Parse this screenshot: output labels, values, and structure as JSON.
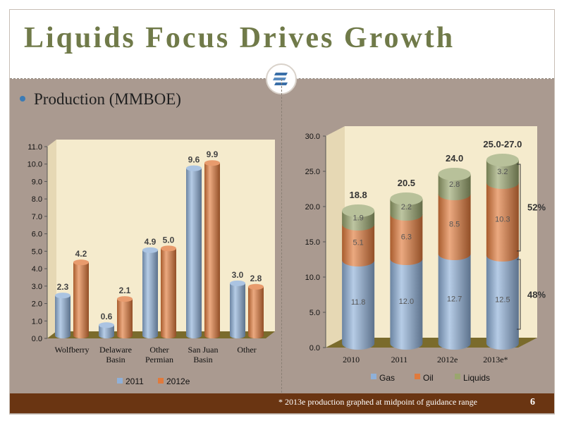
{
  "slide": {
    "title": "Liquids Focus Drives Growth",
    "bullet": "Production (MMBOE)",
    "footnote": "* 2013e production graphed at midpoint of guidance range",
    "page_number": "6"
  },
  "chart_data": [
    {
      "type": "bar",
      "categories": [
        "Wolfberry",
        "Delaware Basin",
        "Other Permian",
        "San Juan Basin",
        "Other"
      ],
      "category_lines": [
        [
          "Wolfberry"
        ],
        [
          "Delaware",
          "Basin"
        ],
        [
          "Other",
          "Permian"
        ],
        [
          "San Juan",
          "Basin"
        ],
        [
          "Other"
        ]
      ],
      "series": [
        {
          "name": "2011",
          "values": [
            2.3,
            0.6,
            4.9,
            9.6,
            3.0
          ],
          "labels": [
            "2.3",
            "0.6",
            "4.9",
            "9.6",
            "3.0"
          ],
          "color": "#8fb0d8"
        },
        {
          "name": "2012e",
          "values": [
            4.2,
            2.1,
            5.0,
            9.9,
            2.8
          ],
          "labels": [
            "4.2",
            "2.1",
            "5.0",
            "9.9",
            "2.8"
          ],
          "color": "#e07a3c"
        }
      ],
      "ylim": [
        0,
        11
      ],
      "y_ticks": [
        "0.0",
        "1.0",
        "2.0",
        "3.0",
        "4.0",
        "5.0",
        "6.0",
        "7.0",
        "8.0",
        "9.0",
        "10.0",
        "11.0"
      ],
      "legend": "bottom",
      "grid": false
    },
    {
      "type": "bar",
      "stacked": true,
      "categories": [
        "2010",
        "2011",
        "2012e",
        "2013e*"
      ],
      "series": [
        {
          "name": "Gas",
          "values": [
            11.8,
            12.0,
            12.7,
            12.5
          ],
          "labels": [
            "11.8",
            "12.0",
            "12.7",
            "12.5"
          ],
          "color": "#8fb0d8"
        },
        {
          "name": "Oil",
          "values": [
            5.1,
            6.3,
            8.5,
            10.3
          ],
          "labels": [
            "5.1",
            "6.3",
            "8.5",
            "10.3"
          ],
          "color": "#e07a3c"
        },
        {
          "name": "Liquids",
          "values": [
            1.9,
            2.2,
            2.8,
            3.2
          ],
          "labels": [
            "1.9",
            "2.2",
            "2.8",
            "3.2"
          ],
          "color": "#9aa66e"
        }
      ],
      "totals": [
        "18.8",
        "20.5",
        "24.0",
        "25.0-27.0"
      ],
      "ylim": [
        0,
        30
      ],
      "y_ticks": [
        "0.0",
        "5.0",
        "10.0",
        "15.0",
        "20.0",
        "25.0",
        "30.0"
      ],
      "annotations": [
        {
          "text": "52%",
          "applies_to": "Oil + Liquids 2013e"
        },
        {
          "text": "48%",
          "applies_to": "Gas 2013e"
        }
      ],
      "legend": "bottom",
      "grid": false
    }
  ]
}
